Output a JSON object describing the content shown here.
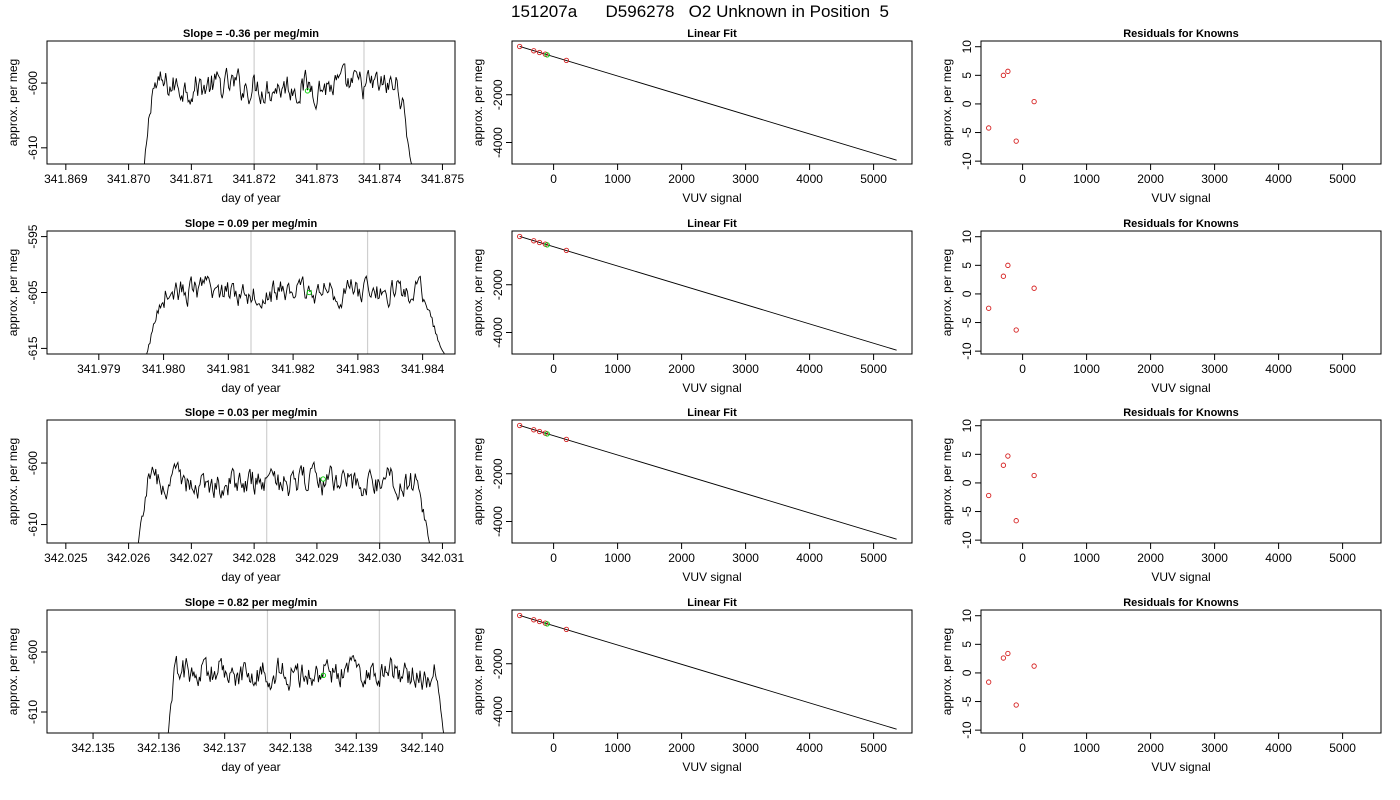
{
  "title": "151207a      D596278   O2 Unknown in Position  5",
  "chart_data": [
    {
      "type": "line",
      "row": 0,
      "panel": "timeseries",
      "title": "Slope =  -0.36  per meg/min",
      "xlabel": "day of year",
      "ylabel": "approx. per meg",
      "xlim": [
        341.8687,
        341.8752
      ],
      "ylim": [
        -612.5,
        -593.5
      ],
      "xticks": [
        341.869,
        341.87,
        341.871,
        341.872,
        341.873,
        341.874,
        341.875
      ],
      "xtick_labels": [
        "341.869",
        "341.870",
        "341.871",
        "341.872",
        "341.873",
        "341.874",
        "341.875"
      ],
      "yticks": [
        -600,
        -610
      ],
      "ytick_labels": [
        "-600",
        "-610"
      ],
      "series_x_start": 341.8702,
      "series_x_end": 341.8746,
      "n_points": 260,
      "mean": -600.5,
      "noise": 1.6,
      "edge_start": -618,
      "edge_end": -618,
      "ramp_fraction": 0.04,
      "vlines": [
        341.872,
        341.87375
      ],
      "marker": {
        "x": 341.87285,
        "y": -601.2
      }
    },
    {
      "type": "scatter",
      "row": 0,
      "panel": "fit",
      "title": "Linear Fit",
      "xlabel": "VUV signal",
      "ylabel": "approx. per meg",
      "xlim": [
        -650,
        5600
      ],
      "ylim": [
        -4900,
        250
      ],
      "xticks": [
        0,
        1000,
        2000,
        3000,
        4000,
        5000
      ],
      "xtick_labels": [
        "0",
        "1000",
        "2000",
        "3000",
        "4000",
        "5000"
      ],
      "yticks": [
        -2000,
        -4000
      ],
      "ytick_labels": [
        "-2000",
        "-4000"
      ],
      "fit_line": {
        "x": [
          -530,
          5360
        ],
        "y": [
          20,
          -4740
        ]
      },
      "known_points": {
        "x": [
          -530,
          -310,
          -220,
          -130,
          200
        ],
        "y": [
          20,
          -160,
          -230,
          -300,
          -560
        ]
      },
      "unknown_point": {
        "x": -100,
        "y": -330
      }
    },
    {
      "type": "scatter",
      "row": 0,
      "panel": "residuals",
      "title": "Residuals for Knowns",
      "xlabel": "VUV signal",
      "ylabel": "approx. per meg",
      "xlim": [
        -650,
        5600
      ],
      "ylim": [
        -10.5,
        11
      ],
      "xticks": [
        0,
        1000,
        2000,
        3000,
        4000,
        5000
      ],
      "xtick_labels": [
        "0",
        "1000",
        "2000",
        "3000",
        "4000",
        "5000"
      ],
      "yticks": [
        10,
        5,
        0,
        -5,
        -10
      ],
      "ytick_labels": [
        "10",
        "5",
        "0",
        "-5",
        "-10"
      ],
      "points": {
        "x": [
          -530,
          -300,
          -230,
          -100,
          180
        ],
        "y": [
          -4.2,
          5.0,
          5.7,
          -6.5,
          0.4
        ]
      }
    },
    {
      "type": "line",
      "row": 1,
      "panel": "timeseries",
      "title": "Slope =  0.09  per meg/min",
      "xlabel": "day of year",
      "ylabel": "approx. per meg",
      "xlim": [
        341.9782,
        341.9845
      ],
      "ylim": [
        -616,
        -594
      ],
      "xticks": [
        341.979,
        341.98,
        341.981,
        341.982,
        341.983,
        341.984
      ],
      "xtick_labels": [
        "341.979",
        "341.980",
        "341.981",
        "341.982",
        "341.983",
        "341.984"
      ],
      "yticks": [
        -595,
        -605,
        -615
      ],
      "ytick_labels": [
        "-595",
        "-605",
        "-615"
      ],
      "series_x_start": 341.9797,
      "series_x_end": 341.9844,
      "n_points": 260,
      "mean": -604.8,
      "noise": 1.6,
      "edge_start": -618,
      "edge_end": -618,
      "ramp_fraction": 0.06,
      "vlines": [
        341.98135,
        341.98315
      ],
      "marker": {
        "x": 341.98225,
        "y": -605.0
      }
    },
    {
      "type": "scatter",
      "row": 1,
      "panel": "fit",
      "title": "Linear Fit",
      "xlabel": "VUV signal",
      "ylabel": "approx. per meg",
      "xlim": [
        -650,
        5600
      ],
      "ylim": [
        -4900,
        250
      ],
      "xticks": [
        0,
        1000,
        2000,
        3000,
        4000,
        5000
      ],
      "xtick_labels": [
        "0",
        "1000",
        "2000",
        "3000",
        "4000",
        "5000"
      ],
      "yticks": [
        -2000,
        -4000
      ],
      "ytick_labels": [
        "-2000",
        "-4000"
      ],
      "fit_line": {
        "x": [
          -530,
          5360
        ],
        "y": [
          20,
          -4740
        ]
      },
      "known_points": {
        "x": [
          -530,
          -310,
          -220,
          -130,
          200
        ],
        "y": [
          20,
          -160,
          -230,
          -300,
          -560
        ]
      },
      "unknown_point": {
        "x": -100,
        "y": -330
      }
    },
    {
      "type": "scatter",
      "row": 1,
      "panel": "residuals",
      "title": "Residuals for Knowns",
      "xlabel": "VUV signal",
      "ylabel": "approx. per meg",
      "xlim": [
        -650,
        5600
      ],
      "ylim": [
        -10.5,
        11
      ],
      "xticks": [
        0,
        1000,
        2000,
        3000,
        4000,
        5000
      ],
      "xtick_labels": [
        "0",
        "1000",
        "2000",
        "3000",
        "4000",
        "5000"
      ],
      "yticks": [
        10,
        5,
        0,
        -5,
        -10
      ],
      "ytick_labels": [
        "10",
        "5",
        "0",
        "-5",
        "-10"
      ],
      "points": {
        "x": [
          -530,
          -300,
          -230,
          -100,
          180
        ],
        "y": [
          -2.5,
          3.1,
          5.0,
          -6.3,
          1.0
        ]
      }
    },
    {
      "type": "line",
      "row": 2,
      "panel": "timeseries",
      "title": "Slope =  0.03  per meg/min",
      "xlabel": "day of year",
      "ylabel": "approx. per meg",
      "xlim": [
        342.0247,
        342.0312
      ],
      "ylim": [
        -613,
        -593
      ],
      "xticks": [
        342.025,
        342.026,
        342.027,
        342.028,
        342.029,
        342.03,
        342.031
      ],
      "xtick_labels": [
        "342.025",
        "342.026",
        "342.027",
        "342.028",
        "342.029",
        "342.030",
        "342.031"
      ],
      "yticks": [
        -600,
        -610
      ],
      "ytick_labels": [
        "-600",
        "-610"
      ],
      "series_x_start": 342.0261,
      "series_x_end": 342.0309,
      "n_points": 260,
      "mean": -603.2,
      "noise": 1.6,
      "edge_start": -618,
      "edge_end": -618,
      "ramp_fraction": 0.04,
      "vlines": [
        342.0282,
        342.03
      ],
      "marker": {
        "x": 342.0291,
        "y": -602.6
      }
    },
    {
      "type": "scatter",
      "row": 2,
      "panel": "fit",
      "title": "Linear Fit",
      "xlabel": "VUV signal",
      "ylabel": "approx. per meg",
      "xlim": [
        -650,
        5600
      ],
      "ylim": [
        -4900,
        250
      ],
      "xticks": [
        0,
        1000,
        2000,
        3000,
        4000,
        5000
      ],
      "xtick_labels": [
        "0",
        "1000",
        "2000",
        "3000",
        "4000",
        "5000"
      ],
      "yticks": [
        -2000,
        -4000
      ],
      "ytick_labels": [
        "-2000",
        "-4000"
      ],
      "fit_line": {
        "x": [
          -530,
          5360
        ],
        "y": [
          20,
          -4740
        ]
      },
      "known_points": {
        "x": [
          -530,
          -310,
          -220,
          -130,
          200
        ],
        "y": [
          20,
          -160,
          -230,
          -300,
          -560
        ]
      },
      "unknown_point": {
        "x": -100,
        "y": -330
      }
    },
    {
      "type": "scatter",
      "row": 2,
      "panel": "residuals",
      "title": "Residuals for Knowns",
      "xlabel": "VUV signal",
      "ylabel": "approx. per meg",
      "xlim": [
        -650,
        5600
      ],
      "ylim": [
        -10.5,
        11
      ],
      "xticks": [
        0,
        1000,
        2000,
        3000,
        4000,
        5000
      ],
      "xtick_labels": [
        "0",
        "1000",
        "2000",
        "3000",
        "4000",
        "5000"
      ],
      "yticks": [
        10,
        5,
        0,
        -5,
        -10
      ],
      "ytick_labels": [
        "10",
        "5",
        "0",
        "-5",
        "-10"
      ],
      "points": {
        "x": [
          -530,
          -300,
          -230,
          -100,
          180
        ],
        "y": [
          -2.2,
          3.1,
          4.7,
          -6.6,
          1.3
        ]
      }
    },
    {
      "type": "line",
      "row": 3,
      "panel": "timeseries",
      "title": "Slope =  0.82  per meg/min",
      "xlabel": "day of year",
      "ylabel": "approx. per meg",
      "xlim": [
        342.1343,
        342.1405
      ],
      "ylim": [
        -613.5,
        -593
      ],
      "xticks": [
        342.135,
        342.136,
        342.137,
        342.138,
        342.139,
        342.14
      ],
      "xtick_labels": [
        "342.135",
        "342.136",
        "342.137",
        "342.138",
        "342.139",
        "342.140"
      ],
      "yticks": [
        -600,
        -610
      ],
      "ytick_labels": [
        "-600",
        "-610"
      ],
      "series_x_start": 342.1361,
      "series_x_end": 342.1404,
      "n_points": 260,
      "mean": -603.6,
      "noise": 1.7,
      "edge_start": -618,
      "edge_end": -618,
      "ramp_fraction": 0.03,
      "vlines": [
        342.13765,
        342.13935
      ],
      "marker": {
        "x": 342.1385,
        "y": -603.9
      }
    },
    {
      "type": "scatter",
      "row": 3,
      "panel": "fit",
      "title": "Linear Fit",
      "xlabel": "VUV signal",
      "ylabel": "approx. per meg",
      "xlim": [
        -650,
        5600
      ],
      "ylim": [
        -4900,
        250
      ],
      "xticks": [
        0,
        1000,
        2000,
        3000,
        4000,
        5000
      ],
      "xtick_labels": [
        "0",
        "1000",
        "2000",
        "3000",
        "4000",
        "5000"
      ],
      "yticks": [
        -2000,
        -4000
      ],
      "ytick_labels": [
        "-2000",
        "-4000"
      ],
      "fit_line": {
        "x": [
          -530,
          5360
        ],
        "y": [
          20,
          -4740
        ]
      },
      "known_points": {
        "x": [
          -530,
          -310,
          -220,
          -130,
          200
        ],
        "y": [
          20,
          -160,
          -230,
          -300,
          -560
        ]
      },
      "unknown_point": {
        "x": -100,
        "y": -330
      }
    },
    {
      "type": "scatter",
      "row": 3,
      "panel": "residuals",
      "title": "Residuals for Knowns",
      "xlabel": "VUV signal",
      "ylabel": "approx. per meg",
      "xlim": [
        -650,
        5600
      ],
      "ylim": [
        -10.5,
        11
      ],
      "xticks": [
        0,
        1000,
        2000,
        3000,
        4000,
        5000
      ],
      "xtick_labels": [
        "0",
        "1000",
        "2000",
        "3000",
        "4000",
        "5000"
      ],
      "yticks": [
        10,
        5,
        0,
        -5,
        -10
      ],
      "ytick_labels": [
        "10",
        "5",
        "0",
        "-5",
        "-10"
      ],
      "points": {
        "x": [
          -530,
          -300,
          -230,
          -100,
          180
        ],
        "y": [
          -1.6,
          2.6,
          3.4,
          -5.6,
          1.2
        ]
      }
    }
  ]
}
